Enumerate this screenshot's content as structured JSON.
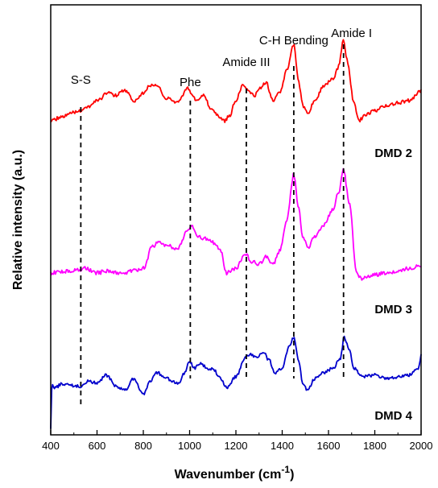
{
  "chart_data": {
    "type": "line",
    "title": "",
    "xlabel": "Wavenumber (cm",
    "xlabel_sup": "-1",
    "xlabel_suffix": ")",
    "ylabel": "Relative intensity (a.u.)",
    "xlim": [
      400,
      2000
    ],
    "xticks": [
      400,
      600,
      800,
      1000,
      1200,
      1400,
      1600,
      1800,
      2000
    ],
    "y_ticks_shown": false,
    "grid": false,
    "legend": "none",
    "annotations": [
      {
        "label": "S-S",
        "x": 530
      },
      {
        "label": "Phe",
        "x": 1003
      },
      {
        "label": "Amide III",
        "x": 1245
      },
      {
        "label": "C-H Bending",
        "x": 1450
      },
      {
        "label": "Amide I",
        "x": 1665
      }
    ],
    "series": [
      {
        "name": "DMD 2",
        "color": "#ff0000",
        "x": [
          400,
          450,
          500,
          550,
          600,
          650,
          680,
          720,
          760,
          800,
          830,
          860,
          900,
          950,
          990,
          1005,
          1030,
          1060,
          1090,
          1120,
          1150,
          1170,
          1200,
          1230,
          1250,
          1280,
          1300,
          1330,
          1360,
          1390,
          1420,
          1450,
          1470,
          1490,
          1510,
          1540,
          1580,
          1620,
          1640,
          1665,
          1680,
          1710,
          1730,
          1760,
          1800,
          1850,
          1900,
          1950,
          2000
        ],
        "values": [
          0.2,
          0.24,
          0.28,
          0.32,
          0.4,
          0.48,
          0.45,
          0.5,
          0.4,
          0.48,
          0.55,
          0.55,
          0.42,
          0.38,
          0.52,
          0.48,
          0.4,
          0.45,
          0.33,
          0.25,
          0.2,
          0.24,
          0.4,
          0.56,
          0.52,
          0.44,
          0.52,
          0.58,
          0.4,
          0.48,
          0.7,
          0.95,
          0.6,
          0.35,
          0.28,
          0.4,
          0.55,
          0.62,
          0.72,
          1.0,
          0.8,
          0.38,
          0.2,
          0.26,
          0.3,
          0.35,
          0.38,
          0.4,
          0.5
        ]
      },
      {
        "name": "DMD 3",
        "color": "#ff00ff",
        "x": [
          400,
          450,
          500,
          550,
          600,
          650,
          700,
          760,
          800,
          840,
          870,
          900,
          950,
          990,
          1010,
          1040,
          1070,
          1100,
          1130,
          1160,
          1200,
          1240,
          1270,
          1300,
          1330,
          1360,
          1390,
          1420,
          1450,
          1470,
          1490,
          1510,
          1540,
          1580,
          1620,
          1645,
          1665,
          1690,
          1720,
          1740,
          1800,
          1850,
          1900,
          1950,
          2000
        ],
        "values": [
          0.08,
          0.09,
          0.1,
          0.12,
          0.08,
          0.1,
          0.07,
          0.1,
          0.12,
          0.32,
          0.35,
          0.32,
          0.3,
          0.45,
          0.5,
          0.4,
          0.38,
          0.35,
          0.3,
          0.08,
          0.12,
          0.25,
          0.18,
          0.16,
          0.22,
          0.15,
          0.28,
          0.55,
          0.95,
          0.65,
          0.4,
          0.3,
          0.4,
          0.5,
          0.65,
          0.8,
          1.0,
          0.7,
          0.1,
          0.03,
          0.06,
          0.08,
          0.1,
          0.12,
          0.15
        ]
      },
      {
        "name": "DMD 4",
        "color": "#0000cc",
        "x": [
          400,
          405,
          420,
          450,
          500,
          530,
          560,
          600,
          640,
          680,
          720,
          760,
          800,
          830,
          860,
          900,
          950,
          980,
          1000,
          1020,
          1050,
          1080,
          1100,
          1130,
          1160,
          1200,
          1240,
          1260,
          1290,
          1320,
          1340,
          1370,
          1400,
          1430,
          1450,
          1470,
          1490,
          1510,
          1540,
          1580,
          1620,
          1650,
          1668,
          1690,
          1710,
          1750,
          1800,
          1850,
          1900,
          1950,
          1990,
          2000
        ],
        "values": [
          -0.4,
          0.1,
          0.08,
          0.12,
          0.1,
          0.09,
          0.15,
          0.13,
          0.22,
          0.1,
          0.05,
          0.18,
          0.0,
          0.15,
          0.25,
          0.18,
          0.12,
          0.25,
          0.38,
          0.3,
          0.35,
          0.28,
          0.3,
          0.2,
          0.08,
          0.2,
          0.42,
          0.45,
          0.42,
          0.48,
          0.4,
          0.25,
          0.3,
          0.55,
          0.65,
          0.4,
          0.1,
          0.05,
          0.18,
          0.25,
          0.3,
          0.4,
          0.65,
          0.5,
          0.3,
          0.2,
          0.22,
          0.18,
          0.2,
          0.22,
          0.3,
          0.45
        ]
      }
    ]
  }
}
